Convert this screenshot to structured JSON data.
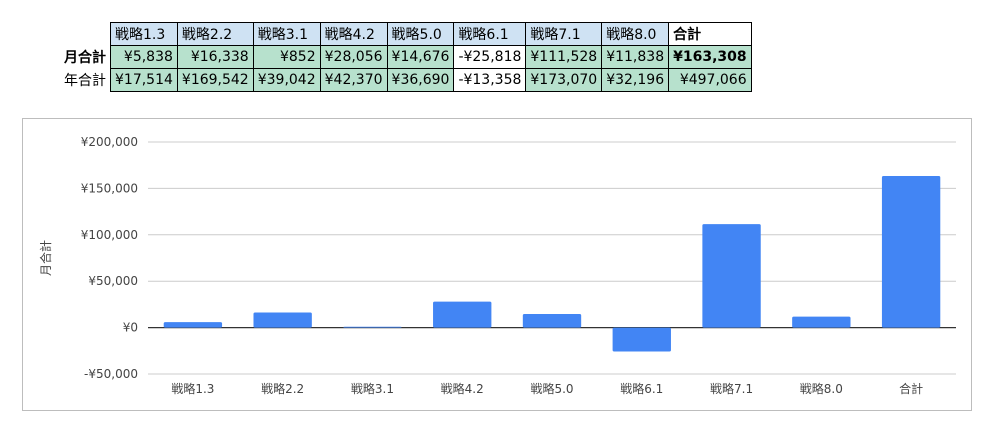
{
  "table": {
    "headers": [
      "戦略1.3",
      "戦略2.2",
      "戦略3.1",
      "戦略4.2",
      "戦略5.0",
      "戦略6.1",
      "戦略7.1",
      "戦略8.0",
      "合計"
    ],
    "rows": [
      {
        "label": "月合計",
        "cells": [
          "¥5,838",
          "¥16,338",
          "¥852",
          "¥28,056",
          "¥14,676",
          "-¥25,818",
          "¥111,528",
          "¥11,838",
          "¥163,308"
        ]
      },
      {
        "label": "年合計",
        "cells": [
          "¥17,514",
          "¥169,542",
          "¥39,042",
          "¥42,370",
          "¥36,690",
          "-¥13,358",
          "¥173,070",
          "¥32,196",
          "¥497,066"
        ]
      }
    ]
  },
  "colors": {
    "header_bg": "#cfe2f3",
    "value_bg": "#b7e1cd",
    "bar": "#4285f4",
    "gridline": "#cccccc",
    "zero_line": "#333333"
  },
  "chart_data": {
    "type": "bar",
    "categories": [
      "戦略1.3",
      "戦略2.2",
      "戦略3.1",
      "戦略4.2",
      "戦略5.0",
      "戦略6.1",
      "戦略7.1",
      "戦略8.0",
      "合計"
    ],
    "values": [
      5838,
      16338,
      852,
      28056,
      14676,
      -25818,
      111528,
      11838,
      163308
    ],
    "ylabel": "月合計",
    "ylim": [
      -50000,
      200000
    ],
    "yticks": [
      -50000,
      0,
      50000,
      100000,
      150000,
      200000
    ],
    "ytick_labels": [
      "-¥50,000",
      "¥0",
      "¥50,000",
      "¥100,000",
      "¥150,000",
      "¥200,000"
    ],
    "grid": true,
    "legend": "none"
  }
}
